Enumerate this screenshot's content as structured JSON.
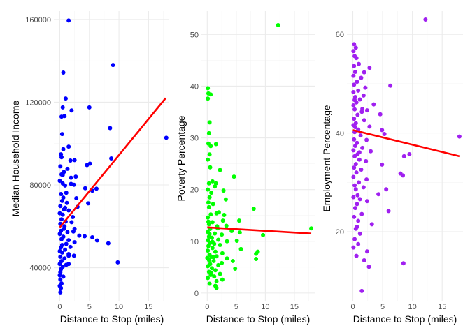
{
  "chart_data": [
    {
      "type": "scatter",
      "xlabel": "Distance to Stop (miles)",
      "ylabel": "Median Household Income",
      "xlim": [
        -1,
        18.5
      ],
      "ylim": [
        24000,
        164000
      ],
      "xticks": [
        0,
        5,
        10,
        15
      ],
      "yticks": [
        40000,
        80000,
        120000,
        160000
      ],
      "point_color": "#0000ff",
      "line_color": "#ff0000",
      "grid": true,
      "trend": [
        [
          0,
          59500
        ],
        [
          17.9,
          122000
        ]
      ],
      "points": [
        [
          1.5,
          159500
        ],
        [
          0.6,
          134300
        ],
        [
          9,
          138000
        ],
        [
          1,
          121800
        ],
        [
          0.5,
          117500
        ],
        [
          5,
          117500
        ],
        [
          0.8,
          113300
        ],
        [
          0.3,
          113000
        ],
        [
          2,
          116000
        ],
        [
          0.4,
          104600
        ],
        [
          8.5,
          107500
        ],
        [
          18,
          102800
        ],
        [
          1.5,
          98500
        ],
        [
          0.6,
          97300
        ],
        [
          0.2,
          94800
        ],
        [
          8.7,
          92800
        ],
        [
          0.3,
          93400
        ],
        [
          2.5,
          92000
        ],
        [
          1.8,
          91800
        ],
        [
          4.6,
          89600
        ],
        [
          5.1,
          90300
        ],
        [
          0.1,
          89000
        ],
        [
          1.3,
          87800
        ],
        [
          0.7,
          86300
        ],
        [
          0.3,
          85100
        ],
        [
          2.7,
          84000
        ],
        [
          0,
          82000
        ],
        [
          0.5,
          80700
        ],
        [
          1.9,
          80500
        ],
        [
          2.4,
          80100
        ],
        [
          0.9,
          79700
        ],
        [
          4.3,
          78400
        ],
        [
          6.2,
          78200
        ],
        [
          5.5,
          77200
        ],
        [
          1.1,
          76200
        ],
        [
          0.2,
          75600
        ],
        [
          0.6,
          73900
        ],
        [
          2.8,
          73600
        ],
        [
          0.4,
          72300
        ],
        [
          1.2,
          71300
        ],
        [
          4.8,
          71100
        ],
        [
          0.1,
          69800
        ],
        [
          3,
          69400
        ],
        [
          0.7,
          68100
        ],
        [
          1.5,
          67700
        ],
        [
          0,
          66300
        ],
        [
          0.5,
          65600
        ],
        [
          2.2,
          64500
        ],
        [
          0.3,
          63400
        ],
        [
          1,
          62300
        ],
        [
          0.1,
          61200
        ],
        [
          0.8,
          60000
        ],
        [
          2.5,
          58800
        ],
        [
          0.2,
          57800
        ],
        [
          1.3,
          57200
        ],
        [
          0,
          56300
        ],
        [
          3.3,
          55500
        ],
        [
          4.2,
          55200
        ],
        [
          0.6,
          55000
        ],
        [
          5.5,
          54700
        ],
        [
          6.3,
          53200
        ],
        [
          0.3,
          53800
        ],
        [
          1.5,
          53300
        ],
        [
          2.5,
          52300
        ],
        [
          1.1,
          51500
        ],
        [
          0.4,
          51000
        ],
        [
          8.2,
          51800
        ],
        [
          0.2,
          49800
        ],
        [
          1.8,
          50000
        ],
        [
          0.9,
          48700
        ],
        [
          0,
          48000
        ],
        [
          0.4,
          47300
        ],
        [
          1.5,
          46600
        ],
        [
          2.4,
          45800
        ],
        [
          0.1,
          45300
        ],
        [
          0.8,
          44500
        ],
        [
          9.8,
          42600
        ],
        [
          0.3,
          43200
        ],
        [
          0,
          41800
        ],
        [
          1.1,
          41400
        ],
        [
          0.5,
          40500
        ],
        [
          0.2,
          39300
        ],
        [
          0.1,
          37800
        ],
        [
          0,
          36300
        ],
        [
          0.6,
          35700
        ],
        [
          0.1,
          34300
        ],
        [
          0.3,
          32400
        ],
        [
          0,
          31200
        ],
        [
          0.2,
          30200
        ],
        [
          0.1,
          28100
        ],
        [
          1.5,
          45800
        ],
        [
          2,
          62000
        ],
        [
          2.3,
          57500
        ],
        [
          0.5,
          84800
        ],
        [
          0.9,
          69000
        ],
        [
          1.5,
          41800
        ],
        [
          1.9,
          83500
        ],
        [
          0.7,
          58800
        ]
      ]
    },
    {
      "type": "scatter",
      "xlabel": "Distance to Stop (miles)",
      "ylabel": "Poverty Percentage",
      "xlim": [
        -1,
        18.5
      ],
      "ylim": [
        -1.5,
        54.5
      ],
      "xticks": [
        0,
        5,
        10,
        15
      ],
      "yticks": [
        0,
        10,
        20,
        30,
        40,
        50
      ],
      "point_color": "#00ff00",
      "line_color": "#ff0000",
      "grid": true,
      "trend": [
        [
          0,
          12.7
        ],
        [
          17.9,
          11.5
        ]
      ],
      "points": [
        [
          12.2,
          51.8
        ],
        [
          0.1,
          39.6
        ],
        [
          0.2,
          38.6
        ],
        [
          0.6,
          38.4
        ],
        [
          0.1,
          37.6
        ],
        [
          0.4,
          33
        ],
        [
          0.3,
          30.9
        ],
        [
          0.2,
          28.9
        ],
        [
          0.6,
          28.4
        ],
        [
          1.5,
          28.8
        ],
        [
          0.4,
          26.8
        ],
        [
          0.1,
          25.8
        ],
        [
          2.2,
          23.8
        ],
        [
          4.6,
          22.5
        ],
        [
          0.9,
          21.6
        ],
        [
          1.5,
          21.2
        ],
        [
          0.3,
          21.2
        ],
        [
          1.3,
          20.6
        ],
        [
          0.1,
          20
        ],
        [
          0.7,
          19.4
        ],
        [
          2.8,
          19.8
        ],
        [
          0.4,
          18.5
        ],
        [
          3.2,
          18.1
        ],
        [
          0.2,
          17.5
        ],
        [
          1,
          17.2
        ],
        [
          8,
          16.3
        ],
        [
          0.3,
          16.6
        ],
        [
          2,
          15.6
        ],
        [
          0.6,
          15.2
        ],
        [
          1.6,
          15.4
        ],
        [
          0.1,
          14.6
        ],
        [
          5.5,
          14
        ],
        [
          2.7,
          14
        ],
        [
          0.9,
          13.7
        ],
        [
          0.3,
          13.3
        ],
        [
          3.3,
          13
        ],
        [
          17.9,
          12.5
        ],
        [
          0.5,
          12.4
        ],
        [
          1.8,
          12.5
        ],
        [
          0.1,
          11.8
        ],
        [
          4.2,
          12
        ],
        [
          5.6,
          11.7
        ],
        [
          1.3,
          11.5
        ],
        [
          9.6,
          11.2
        ],
        [
          2.5,
          11.3
        ],
        [
          0.3,
          10.9
        ],
        [
          0.8,
          10.7
        ],
        [
          0.1,
          10.2
        ],
        [
          5.1,
          10.1
        ],
        [
          1.9,
          10.3
        ],
        [
          3.4,
          10
        ],
        [
          0.5,
          9.7
        ],
        [
          1.2,
          9.5
        ],
        [
          0.2,
          9.1
        ],
        [
          2.2,
          9.3
        ],
        [
          0.9,
          8.7
        ],
        [
          5.8,
          8.5
        ],
        [
          0.1,
          8.2
        ],
        [
          8.7,
          8
        ],
        [
          1.4,
          8
        ],
        [
          8.4,
          7.6
        ],
        [
          2.6,
          7.7
        ],
        [
          0.4,
          7.4
        ],
        [
          0.7,
          7
        ],
        [
          1.6,
          7.1
        ],
        [
          0,
          6.8
        ],
        [
          3.4,
          6.7
        ],
        [
          0.3,
          6.4
        ],
        [
          1.1,
          6.2
        ],
        [
          4.4,
          6.2
        ],
        [
          8.4,
          6.6
        ],
        [
          2.5,
          5.8
        ],
        [
          0.5,
          5.6
        ],
        [
          1.9,
          5.4
        ],
        [
          0.1,
          5.2
        ],
        [
          0.8,
          4.8
        ],
        [
          4.8,
          4.7
        ],
        [
          1.4,
          4.4
        ],
        [
          0.3,
          4.1
        ],
        [
          2.2,
          3.7
        ],
        [
          0.6,
          3.5
        ],
        [
          1.2,
          3.2
        ],
        [
          0.1,
          2.9
        ],
        [
          2.6,
          2.6
        ],
        [
          1.6,
          2.3
        ],
        [
          0.4,
          1.8
        ],
        [
          1.4,
          1.4
        ],
        [
          1.6,
          1
        ],
        [
          0.9,
          9.9
        ],
        [
          0.2,
          13.8
        ],
        [
          0.7,
          3.9
        ],
        [
          1.7,
          12.9
        ],
        [
          0.5,
          24.3
        ],
        [
          1.1,
          6.9
        ],
        [
          2.9,
          15.1
        ],
        [
          0.4,
          11.4
        ]
      ]
    },
    {
      "type": "scatter",
      "xlabel": "Distance to Stop (miles)",
      "ylabel": "Employment Percentage",
      "xlim": [
        -1,
        18.5
      ],
      "ylim": [
        6,
        64.7
      ],
      "xticks": [
        0,
        5,
        10,
        15
      ],
      "yticks": [
        20,
        40,
        60
      ],
      "point_color": "#a020f0",
      "line_color": "#ff0000",
      "grid": true,
      "trend": [
        [
          0,
          40.6
        ],
        [
          17.9,
          35.3
        ]
      ],
      "points": [
        [
          12.2,
          63
        ],
        [
          0.2,
          58
        ],
        [
          0.1,
          56.6
        ],
        [
          0.5,
          57.3
        ],
        [
          0.3,
          55.6
        ],
        [
          0.6,
          55.2
        ],
        [
          1,
          54
        ],
        [
          0.2,
          53.6
        ],
        [
          2.8,
          53.2
        ],
        [
          0.4,
          52.4
        ],
        [
          1.9,
          52.3
        ],
        [
          0.1,
          51.6
        ],
        [
          1.4,
          51.2
        ],
        [
          0.7,
          50.4
        ],
        [
          0.2,
          49.8
        ],
        [
          6.3,
          49.6
        ],
        [
          2.1,
          49.2
        ],
        [
          0.9,
          48.6
        ],
        [
          0.1,
          48.3
        ],
        [
          1.8,
          47.6
        ],
        [
          0.4,
          47.3
        ],
        [
          1.2,
          46.8
        ],
        [
          0.6,
          46.2
        ],
        [
          3.5,
          45.8
        ],
        [
          0.1,
          45.6
        ],
        [
          0.3,
          44.8
        ],
        [
          2.4,
          44.6
        ],
        [
          1.5,
          44.3
        ],
        [
          0.8,
          43.7
        ],
        [
          4.6,
          43.8
        ],
        [
          0.2,
          42.9
        ],
        [
          1.9,
          42.6
        ],
        [
          0.5,
          42
        ],
        [
          0.1,
          41.6
        ],
        [
          2.8,
          41.3
        ],
        [
          0.9,
          40.7
        ],
        [
          0.3,
          40.2
        ],
        [
          4.9,
          40.6
        ],
        [
          5.3,
          39.8
        ],
        [
          1.3,
          39.5
        ],
        [
          17.9,
          39.3
        ],
        [
          0.2,
          38.7
        ],
        [
          2.3,
          38.6
        ],
        [
          0.7,
          38
        ],
        [
          0.4,
          37.4
        ],
        [
          1.6,
          37
        ],
        [
          0.1,
          36.5
        ],
        [
          3,
          36.3
        ],
        [
          0.8,
          35.7
        ],
        [
          0.3,
          35.3
        ],
        [
          9.5,
          35.7
        ],
        [
          8.6,
          35.3
        ],
        [
          1.1,
          34.6
        ],
        [
          2.2,
          34.3
        ],
        [
          0.5,
          33.7
        ],
        [
          4.9,
          33.6
        ],
        [
          0.2,
          33
        ],
        [
          1.4,
          32.6
        ],
        [
          0.6,
          32
        ],
        [
          8,
          31.8
        ],
        [
          8.4,
          31.4
        ],
        [
          0.1,
          31.1
        ],
        [
          2.3,
          30.6
        ],
        [
          1,
          30
        ],
        [
          0.3,
          29.4
        ],
        [
          1.8,
          29
        ],
        [
          0.5,
          28.6
        ],
        [
          5.6,
          28.6
        ],
        [
          4.3,
          27.6
        ],
        [
          0.1,
          27
        ],
        [
          1.2,
          26.6
        ],
        [
          2.4,
          26.2
        ],
        [
          0.7,
          25.6
        ],
        [
          0.4,
          24.8
        ],
        [
          6,
          24.2
        ],
        [
          1.5,
          23.6
        ],
        [
          0.2,
          23
        ],
        [
          0.9,
          22.2
        ],
        [
          3.2,
          21.5
        ],
        [
          0.5,
          20.6
        ],
        [
          1.2,
          19.6
        ],
        [
          0.3,
          18.5
        ],
        [
          0.9,
          17.5
        ],
        [
          0.1,
          16.8
        ],
        [
          2.4,
          16
        ],
        [
          0.6,
          15.1
        ],
        [
          1.9,
          14.2
        ],
        [
          8.5,
          13.6
        ],
        [
          2.7,
          12.9
        ],
        [
          1.5,
          8
        ],
        [
          0.4,
          41.2
        ],
        [
          0.8,
          27.4
        ],
        [
          1.6,
          44.9
        ],
        [
          0.3,
          46.7
        ],
        [
          1.1,
          36.1
        ],
        [
          0.7,
          21
        ]
      ]
    }
  ]
}
